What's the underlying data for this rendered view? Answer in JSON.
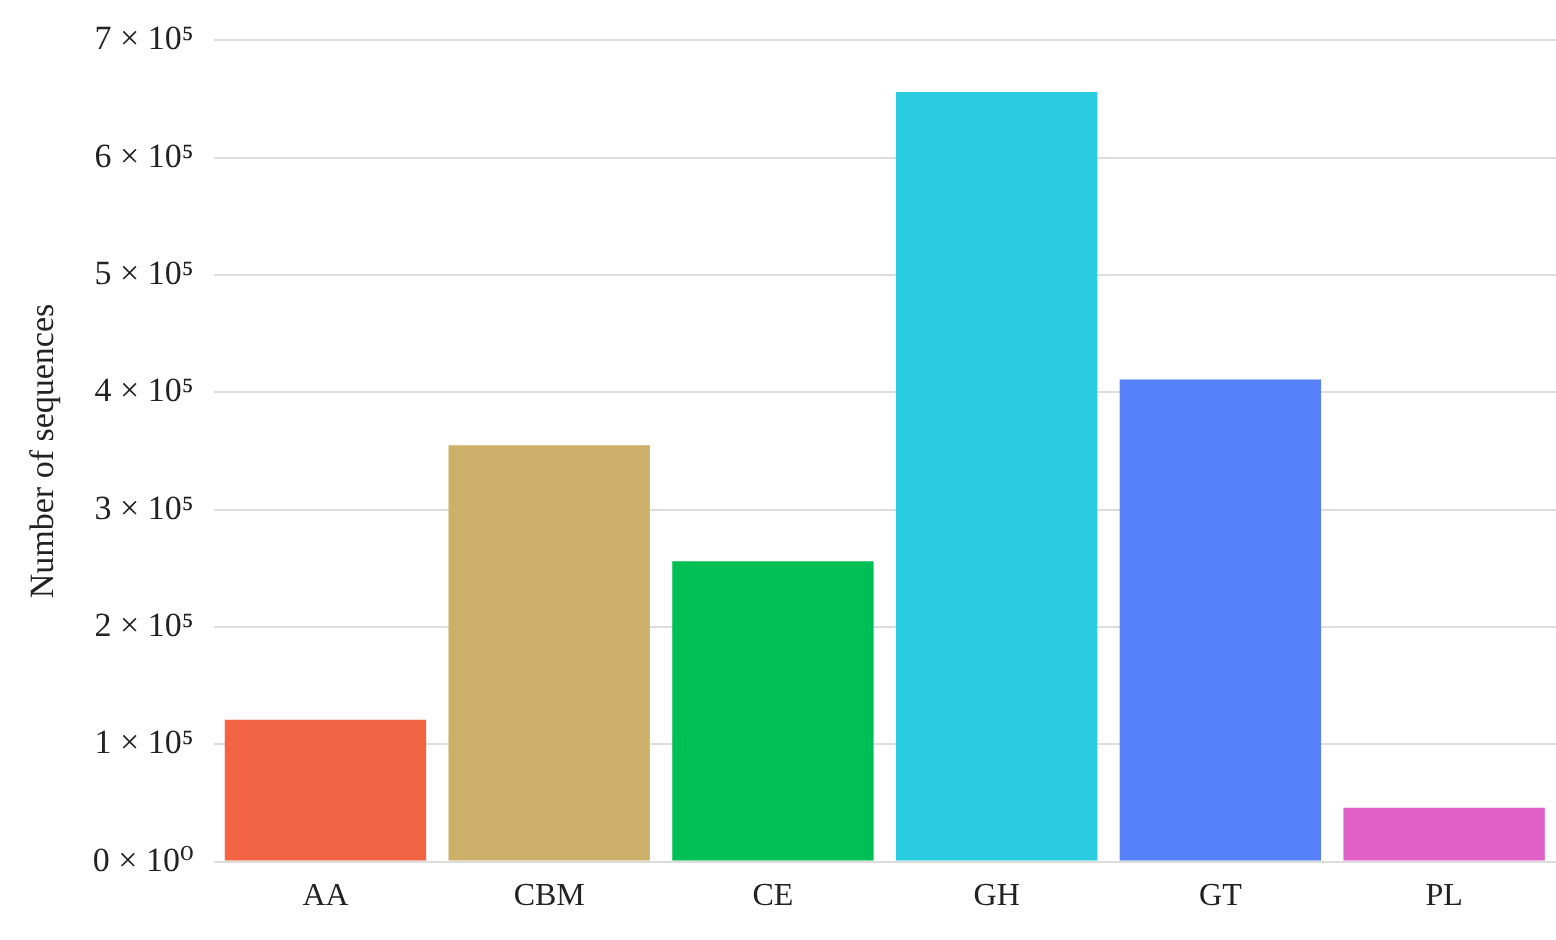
{
  "chart_data": {
    "type": "bar",
    "ylabel": "Number of sequences",
    "categories": [
      "AA",
      "CBM",
      "CE",
      "GH",
      "GT",
      "PL"
    ],
    "values": [
      121000,
      355000,
      256000,
      656000,
      411000,
      46000
    ],
    "colors": [
      "#f26444",
      "#cdb06a",
      "#00bf55",
      "#29cce0",
      "#5580fa",
      "#e060c8"
    ],
    "ylim": [
      0,
      700000
    ],
    "yticks": [
      {
        "value": 0,
        "label": "0 × 10⁰"
      },
      {
        "value": 100000,
        "label": "1 × 10⁵"
      },
      {
        "value": 200000,
        "label": "2 × 10⁵"
      },
      {
        "value": 300000,
        "label": "3 × 10⁵"
      },
      {
        "value": 400000,
        "label": "4 × 10⁵"
      },
      {
        "value": 500000,
        "label": "5 × 10⁵"
      },
      {
        "value": 600000,
        "label": "6 × 10⁵"
      },
      {
        "value": 700000,
        "label": "7 × 10⁵"
      }
    ],
    "grid": "y",
    "legend": false
  }
}
